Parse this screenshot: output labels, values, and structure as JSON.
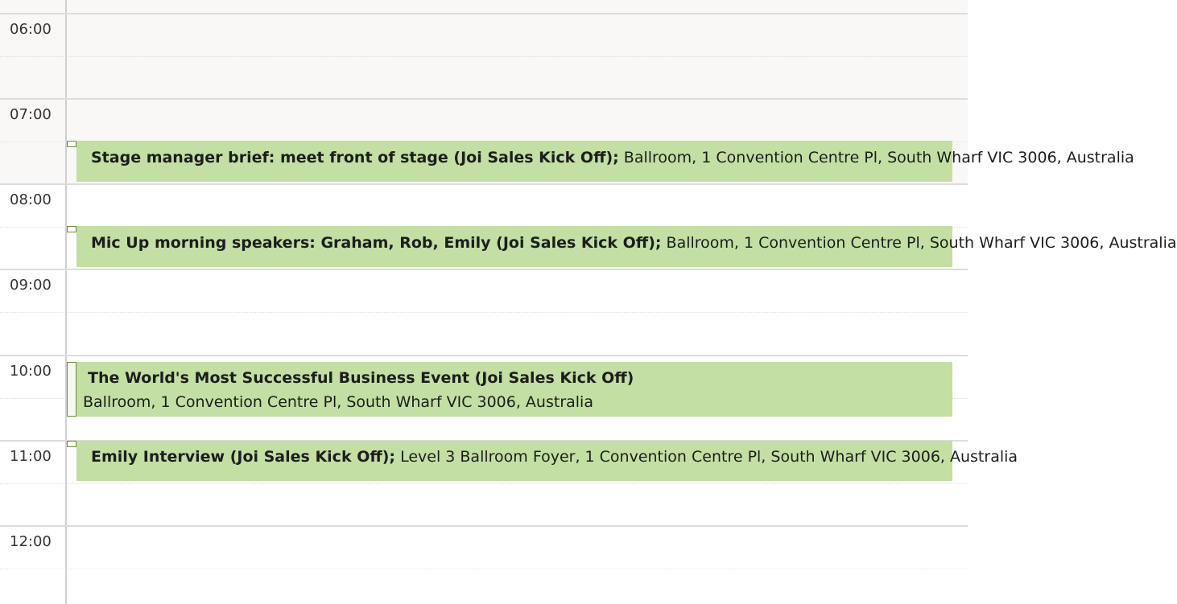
{
  "hours": [
    "06:00",
    "07:00",
    "08:00",
    "09:00",
    "10:00",
    "11:00",
    "12:00"
  ],
  "events": [
    {
      "title": "Stage manager  brief: meet front of stage (Joi Sales Kick Off);",
      "location": "Ballroom, 1 Convention Centre Pl, South Wharf VIC 3006, Australia"
    },
    {
      "title": "Mic Up morning speakers: Graham, Rob, Emily (Joi Sales Kick Off);",
      "location": "Ballroom, 1 Convention Centre Pl, South Wharf VIC 3006, Australia"
    },
    {
      "title": "The World's Most Successful Business Event (Joi Sales Kick Off)",
      "location": "Ballroom, 1 Convention Centre Pl, South Wharf VIC 3006, Australia"
    },
    {
      "title": "Emily Interview (Joi Sales Kick Off);",
      "location": "Level 3 Ballroom Foyer, 1 Convention Centre Pl, South Wharf VIC 3006, Australia"
    }
  ],
  "colors": {
    "event_bg": "#c3dfa4",
    "offhours_bg": "#f9f8f6"
  }
}
